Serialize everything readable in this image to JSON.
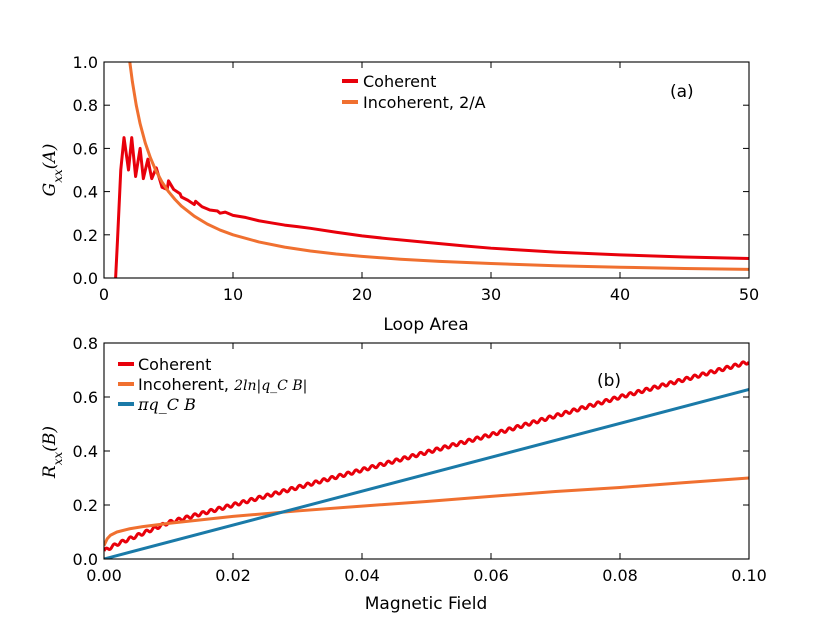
{
  "chart_data": [
    {
      "type": "line",
      "panel_label": "(a)",
      "xlabel": "Loop Area",
      "ylabel": "G_xx(A)",
      "ylabel_parts": {
        "symbol": "G",
        "subscript": "xx",
        "argument": "(A)"
      },
      "xlim": [
        0,
        50
      ],
      "ylim": [
        0.0,
        1.0
      ],
      "x_ticks": [
        0,
        10,
        20,
        30,
        40,
        50
      ],
      "x_tick_labels": [
        "0",
        "10",
        "20",
        "30",
        "40",
        "50"
      ],
      "y_ticks": [
        0.0,
        0.2,
        0.4,
        0.6,
        0.8,
        1.0
      ],
      "y_tick_labels": [
        "0.0",
        "0.2",
        "0.4",
        "0.6",
        "0.8",
        "1.0"
      ],
      "legend_position": "top-center",
      "series": [
        {
          "name": "Coherent",
          "color": "#e8000b",
          "x": [
            0.9,
            1.05,
            1.3,
            1.55,
            1.9,
            2.15,
            2.45,
            2.8,
            3.05,
            3.4,
            3.7,
            4.05,
            4.5,
            4.9,
            5.0,
            5.4,
            5.9,
            6.0,
            6.5,
            7.0,
            7.1,
            7.6,
            8.0,
            8.2,
            8.8,
            9.0,
            9.4,
            10.0,
            11,
            12,
            13,
            14,
            15,
            16,
            18,
            20,
            22,
            25,
            28,
            30,
            35,
            40,
            45,
            50
          ],
          "y": [
            0.0,
            0.18,
            0.5,
            0.65,
            0.5,
            0.65,
            0.47,
            0.6,
            0.46,
            0.55,
            0.46,
            0.51,
            0.42,
            0.41,
            0.45,
            0.41,
            0.39,
            0.375,
            0.36,
            0.34,
            0.355,
            0.33,
            0.32,
            0.315,
            0.31,
            0.3,
            0.305,
            0.29,
            0.28,
            0.265,
            0.255,
            0.245,
            0.238,
            0.23,
            0.212,
            0.195,
            0.182,
            0.165,
            0.148,
            0.138,
            0.12,
            0.107,
            0.097,
            0.09
          ]
        },
        {
          "name": "Incoherent, 2/A",
          "color": "#f07030",
          "formula": "2/A",
          "x": [
            2.0,
            2.2,
            2.5,
            2.8,
            3.2,
            3.6,
            4,
            4.5,
            5,
            5.5,
            6,
            7,
            8,
            9,
            10,
            12,
            14,
            16,
            18,
            20,
            23,
            26,
            30,
            35,
            40,
            45,
            50
          ],
          "y": [
            1.0,
            0.909,
            0.8,
            0.714,
            0.625,
            0.556,
            0.5,
            0.444,
            0.4,
            0.364,
            0.333,
            0.286,
            0.25,
            0.222,
            0.2,
            0.167,
            0.143,
            0.125,
            0.111,
            0.1,
            0.087,
            0.077,
            0.067,
            0.057,
            0.05,
            0.044,
            0.04
          ]
        }
      ]
    },
    {
      "type": "line",
      "panel_label": "(b)",
      "xlabel": "Magnetic Field",
      "ylabel": "R_xx(B)",
      "ylabel_parts": {
        "symbol": "R",
        "subscript": "xx",
        "argument": "(B)"
      },
      "xlim": [
        0.0,
        0.1
      ],
      "ylim": [
        0.0,
        0.8
      ],
      "x_ticks": [
        0.0,
        0.02,
        0.04,
        0.06,
        0.08,
        0.1
      ],
      "x_tick_labels": [
        "0.00",
        "0.02",
        "0.04",
        "0.06",
        "0.08",
        "0.10"
      ],
      "y_ticks": [
        0.0,
        0.2,
        0.4,
        0.6,
        0.8
      ],
      "y_tick_labels": [
        "0.0",
        "0.2",
        "0.4",
        "0.6",
        "0.8"
      ],
      "legend_position": "top-left",
      "series": [
        {
          "name": "Coherent",
          "color": "#e8000b",
          "formula": "πq_C·B + 2ln(...) — oscillating",
          "x": [
            0.0,
            0.002,
            0.005,
            0.01,
            0.02,
            0.03,
            0.04,
            0.05,
            0.06,
            0.07,
            0.08,
            0.09,
            0.1
          ],
          "y": [
            0.03,
            0.055,
            0.085,
            0.135,
            0.2,
            0.265,
            0.33,
            0.395,
            0.46,
            0.53,
            0.6,
            0.665,
            0.73
          ],
          "oscillation_amplitude": 0.006,
          "oscillation_period": 0.00125
        },
        {
          "name": "Incoherent,",
          "formula_label": "2ln|q_C B|",
          "color": "#f07030",
          "x": [
            0.0,
            0.0005,
            0.001,
            0.002,
            0.004,
            0.006,
            0.01,
            0.02,
            0.03,
            0.04,
            0.05,
            0.06,
            0.07,
            0.08,
            0.09,
            0.1
          ],
          "y": [
            0.05,
            0.075,
            0.088,
            0.1,
            0.112,
            0.12,
            0.132,
            0.158,
            0.178,
            0.196,
            0.213,
            0.232,
            0.25,
            0.265,
            0.283,
            0.3
          ]
        },
        {
          "name": "πq_C B",
          "formula_label": "πq_C B",
          "color": "#1a7aa8",
          "x": [
            0.0,
            0.1
          ],
          "y": [
            0.0,
            0.628
          ]
        }
      ]
    }
  ]
}
